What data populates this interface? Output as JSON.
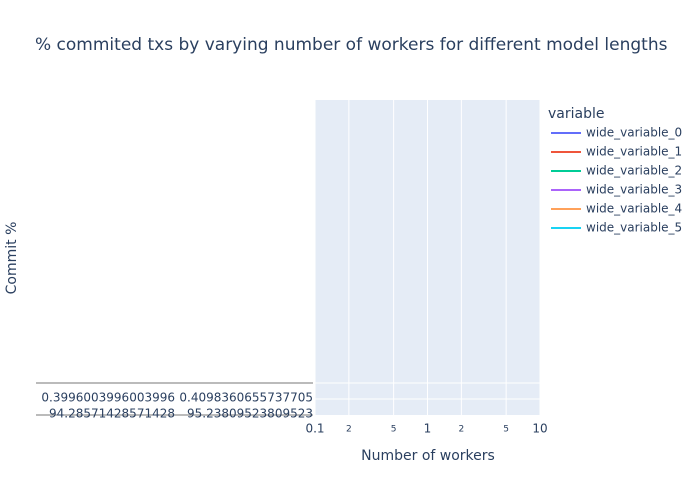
{
  "chart_data": {
    "type": "line",
    "title": "% commited txs by varying number of workers for different model lengths",
    "x_label": "Number of workers",
    "y_label": "Commit %",
    "log_x": true,
    "xlim": [
      0.1,
      10
    ],
    "xticks": [
      0.1,
      {
        "value": 0.2,
        "label": "2"
      },
      {
        "value": 0.5,
        "label": "5"
      },
      1,
      {
        "value": 2,
        "label": "2"
      },
      {
        "value": 5,
        "label": "5"
      },
      10
    ],
    "y_categories": [
      "0.3996003996003996",
      "0.4098360655737705",
      "94.28571428571428",
      "95.23809523809523"
    ],
    "grid": true,
    "legend_title": "variable",
    "legend_position": "right",
    "series": [
      {
        "name": "wide_variable_0",
        "color": "#636efa"
      },
      {
        "name": "wide_variable_1",
        "color": "#ef553b"
      },
      {
        "name": "wide_variable_2",
        "color": "#00cc96"
      },
      {
        "name": "wide_variable_3",
        "color": "#ab63fa"
      },
      {
        "name": "wide_variable_4",
        "color": "#ffa15a"
      },
      {
        "name": "wide_variable_5",
        "color": "#19d3f3"
      }
    ]
  }
}
